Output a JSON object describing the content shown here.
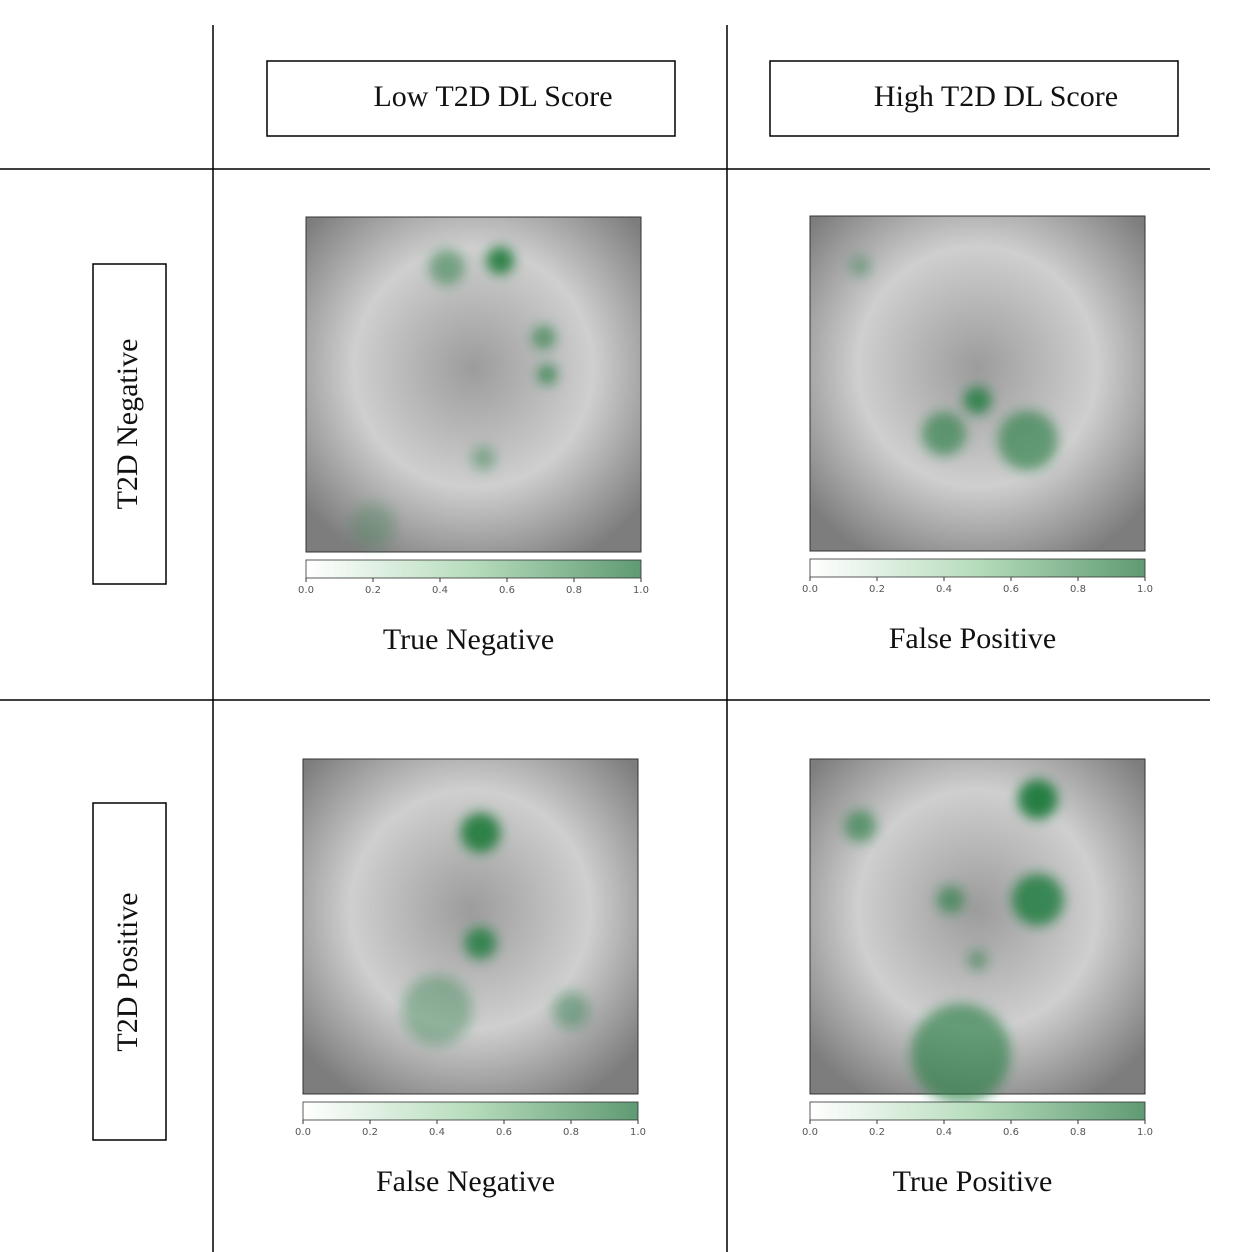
{
  "columns": [
    "Low T2D DL Score",
    "High T2D DL Score"
  ],
  "rows": [
    "T2D Negative",
    "T2D Positive"
  ],
  "cells": [
    [
      {
        "caption": "True Negative"
      },
      {
        "caption": "False Positive"
      }
    ],
    [
      {
        "caption": "False Negative"
      },
      {
        "caption": "True Positive"
      }
    ]
  ],
  "colorbar": {
    "lim": [
      0,
      1
    ],
    "ticks": [
      {
        "value": 0,
        "label": "0.0"
      },
      0.2,
      0.4,
      0.6,
      0.8,
      {
        "value": 1,
        "label": "1.0"
      }
    ]
  }
}
